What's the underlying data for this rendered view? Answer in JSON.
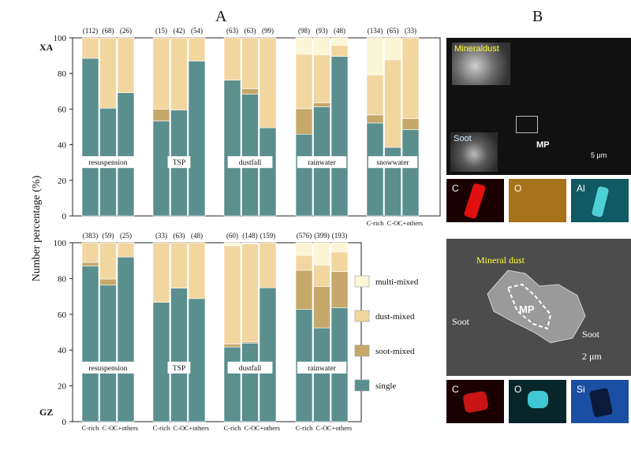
{
  "panels": {
    "A": "A",
    "B": "B"
  },
  "chart_data": [
    {
      "type": "bar",
      "stacked": true,
      "row_label": "XA",
      "ylabel": "Number percentage (%)",
      "ylim": [
        0,
        100
      ],
      "yticks": [
        0,
        20,
        40,
        60,
        80,
        100
      ],
      "categories": [
        "C-rich",
        "C-O",
        "C+others"
      ],
      "groups": [
        {
          "name": "resuspension",
          "counts": [
            "(112)",
            "(68)",
            "(26)"
          ],
          "single": [
            88.5,
            60.5,
            69.2
          ],
          "soot_mixed": [
            0,
            0,
            0
          ],
          "dust_mixed": [
            11.5,
            39.5,
            30.8
          ],
          "multi_mixed": [
            0,
            0,
            0
          ]
        },
        {
          "name": "TSP",
          "counts": [
            "(15)",
            "(42)",
            "(54)"
          ],
          "single": [
            53.3,
            59.5,
            87.0
          ],
          "soot_mixed": [
            6.7,
            0,
            0
          ],
          "dust_mixed": [
            40.0,
            40.5,
            13.0
          ],
          "multi_mixed": [
            0,
            0,
            0
          ]
        },
        {
          "name": "dustfall",
          "counts": [
            "(63)",
            "(63)",
            "(99)"
          ],
          "single": [
            76.2,
            68.3,
            49.5
          ],
          "soot_mixed": [
            0,
            3.2,
            0
          ],
          "dust_mixed": [
            23.8,
            28.5,
            50.5
          ],
          "multi_mixed": [
            0,
            0,
            0
          ]
        },
        {
          "name": "rainwater",
          "counts": [
            "(98)",
            "(93)",
            "(48)"
          ],
          "single": [
            45.9,
            61.3,
            89.6
          ],
          "soot_mixed": [
            14.3,
            2.2,
            0
          ],
          "dust_mixed": [
            30.6,
            26.9,
            6.2
          ],
          "multi_mixed": [
            9.2,
            9.6,
            4.2
          ]
        },
        {
          "name": "snowwater",
          "counts": [
            "(134)",
            "(65)",
            "(33)"
          ],
          "single": [
            52.2,
            38.5,
            48.5
          ],
          "soot_mixed": [
            4.5,
            0,
            6.1
          ],
          "dust_mixed": [
            22.4,
            49.2,
            45.4
          ],
          "multi_mixed": [
            20.9,
            12.3,
            0
          ]
        }
      ]
    },
    {
      "type": "bar",
      "stacked": true,
      "row_label": "GZ",
      "ylabel": "Number percentage (%)",
      "ylim": [
        0,
        100
      ],
      "yticks": [
        0,
        20,
        40,
        60,
        80,
        100
      ],
      "categories": [
        "C-rich",
        "C-O",
        "C+others"
      ],
      "groups": [
        {
          "name": "resuspension",
          "counts": [
            "(383)",
            "(59)",
            "(25)"
          ],
          "single": [
            86.9,
            76.3,
            92.0
          ],
          "soot_mixed": [
            2.1,
            3.4,
            0
          ],
          "dust_mixed": [
            11.0,
            20.3,
            8.0
          ],
          "multi_mixed": [
            0,
            0,
            0
          ]
        },
        {
          "name": "TSP",
          "counts": [
            "(33)",
            "(63)",
            "(48)"
          ],
          "single": [
            66.7,
            74.6,
            68.8
          ],
          "soot_mixed": [
            0,
            0,
            0
          ],
          "dust_mixed": [
            33.3,
            25.4,
            31.2
          ],
          "multi_mixed": [
            0,
            0,
            0
          ]
        },
        {
          "name": "dustfall",
          "counts": [
            "(60)",
            "(148)",
            "(159)"
          ],
          "single": [
            41.7,
            43.9,
            74.8
          ],
          "soot_mixed": [
            1.6,
            0.7,
            0
          ],
          "dust_mixed": [
            55.0,
            54.7,
            25.2
          ],
          "multi_mixed": [
            1.7,
            0.7,
            0
          ]
        },
        {
          "name": "rainwater",
          "counts": [
            "(576)",
            "(399)",
            "(193)"
          ],
          "single": [
            62.7,
            52.4,
            63.7
          ],
          "soot_mixed": [
            21.9,
            23.1,
            20.2
          ],
          "dust_mixed": [
            8.3,
            12.0,
            10.9
          ],
          "multi_mixed": [
            7.1,
            12.5,
            5.2
          ]
        }
      ]
    }
  ],
  "legend": [
    {
      "key": "multi_mixed",
      "label": "multi-mixed",
      "color": "#fdf6d6"
    },
    {
      "key": "dust_mixed",
      "label": "dust-mixed",
      "color": "#f2d6a0"
    },
    {
      "key": "soot_mixed",
      "label": "soot-mixed",
      "color": "#c5a86a"
    },
    {
      "key": "single",
      "label": "single",
      "color": "#5a8f8e"
    }
  ],
  "panelB": {
    "sem1": {
      "mineral_dust": "Mineraldust",
      "soot": "Soot",
      "mp": "MP",
      "scale": "5 μm"
    },
    "eds1": [
      "C",
      "O",
      "Al"
    ],
    "sem2": {
      "mineral_dust": "Mineral dust",
      "soot_left": "Soot",
      "soot_right": "Soot",
      "mp": "MP",
      "scale": "2 μm"
    },
    "eds2": [
      "C",
      "O",
      "Si"
    ]
  }
}
